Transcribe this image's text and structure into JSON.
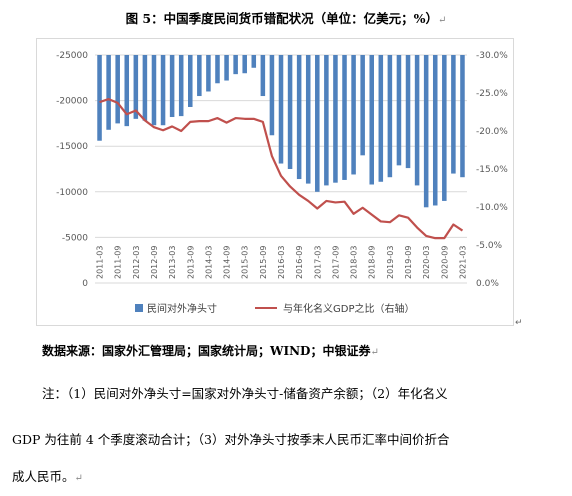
{
  "figure": {
    "caption": "图 5：中国季度民间货币错配状况（单位：亿美元；%）",
    "caption_mark": "↵"
  },
  "source": {
    "text": "数据来源：国家外汇管理局；国家统计局；WIND；中银证券",
    "mark": "↵"
  },
  "notes": {
    "line1": "注：（1）民间对外净头寸=国家对外净头寸-储备资产余额；（2）年化名义",
    "line2": "GDP 为往前 4 个季度滚动合计；（3）对外净头寸按季末人民币汇率中间价折合",
    "line3": "成人民币。",
    "mark": "↵"
  },
  "corner_mark": "↵",
  "colors": {
    "bar": "#4f81bd",
    "line": "#c0504d",
    "grid": "#d9d9d9",
    "axis_text": "#595959"
  },
  "chart_data": {
    "type": "bar",
    "categories": [
      "2011-03",
      "2011-06",
      "2011-09",
      "2011-12",
      "2012-03",
      "2012-06",
      "2012-09",
      "2012-12",
      "2013-03",
      "2013-06",
      "2013-09",
      "2013-12",
      "2014-03",
      "2014-06",
      "2014-09",
      "2014-12",
      "2015-03",
      "2015-06",
      "2015-09",
      "2015-12",
      "2016-03",
      "2016-06",
      "2016-09",
      "2016-12",
      "2017-03",
      "2017-06",
      "2017-09",
      "2017-12",
      "2018-03",
      "2018-06",
      "2018-09",
      "2018-12",
      "2019-03",
      "2019-06",
      "2019-09",
      "2019-12",
      "2020-03",
      "2020-06",
      "2020-09",
      "2020-12",
      "2021-03"
    ],
    "tick_labels": [
      "2011-03",
      "2011-09",
      "2012-03",
      "2012-09",
      "2013-03",
      "2013-09",
      "2014-03",
      "2014-09",
      "2015-03",
      "2015-09",
      "2016-03",
      "2016-09",
      "2017-03",
      "2017-09",
      "2018-03",
      "2018-09",
      "2019-03",
      "2019-09",
      "2020-03",
      "2020-09",
      "2021-03"
    ],
    "series": [
      {
        "name": "民间对外净头寸",
        "type": "bar",
        "axis": "left",
        "values": [
          -15600,
          -16800,
          -17500,
          -17200,
          -18000,
          -17800,
          -17300,
          -17300,
          -18200,
          -18300,
          -19300,
          -20500,
          -21000,
          -21900,
          -22200,
          -22900,
          -23000,
          -23600,
          -20500,
          -16200,
          -13100,
          -12500,
          -11400,
          -10900,
          -10000,
          -10700,
          -11000,
          -11300,
          -11900,
          -14000,
          -10800,
          -11100,
          -11600,
          -12900,
          -12600,
          -10700,
          -8300,
          -8500,
          -9000,
          -12000,
          -11600
        ]
      },
      {
        "name": "与年化名义GDP之比（右轴）",
        "type": "line",
        "axis": "right",
        "values": [
          -23.8,
          -24.2,
          -23.7,
          -22.2,
          -22.7,
          -21.4,
          -20.5,
          -20.1,
          -20.6,
          -20.0,
          -21.2,
          -21.3,
          -21.3,
          -21.7,
          -21.1,
          -21.7,
          -21.6,
          -21.6,
          -21.2,
          -16.7,
          -14.1,
          -12.7,
          -11.6,
          -10.8,
          -9.8,
          -10.8,
          -10.6,
          -10.7,
          -9.1,
          -9.9,
          -9.0,
          -8.1,
          -8.0,
          -8.9,
          -8.6,
          -7.3,
          -6.2,
          -5.9,
          -5.9,
          -7.7,
          -6.9
        ]
      }
    ],
    "y_left": {
      "ticks": [
        -25000,
        -20000,
        -15000,
        -10000,
        -5000,
        0
      ],
      "tick_labels": [
        "-25000",
        "-20000",
        "-15000",
        "-10000",
        "-5000",
        "0"
      ],
      "range": [
        -25000,
        0
      ]
    },
    "y_right": {
      "ticks": [
        -30,
        -25,
        -20,
        -15,
        -10,
        -5,
        0
      ],
      "tick_labels": [
        "-30.0%",
        "-25.0%",
        "-20.0%",
        "-15.0%",
        "-10.0%",
        "-5.0%",
        "0.0%"
      ],
      "range": [
        -30,
        0
      ]
    },
    "legend": {
      "placement": "bottom",
      "entries": [
        "民间对外净头寸",
        "与年化名义GDP之比（右轴）"
      ]
    },
    "grid": true
  }
}
